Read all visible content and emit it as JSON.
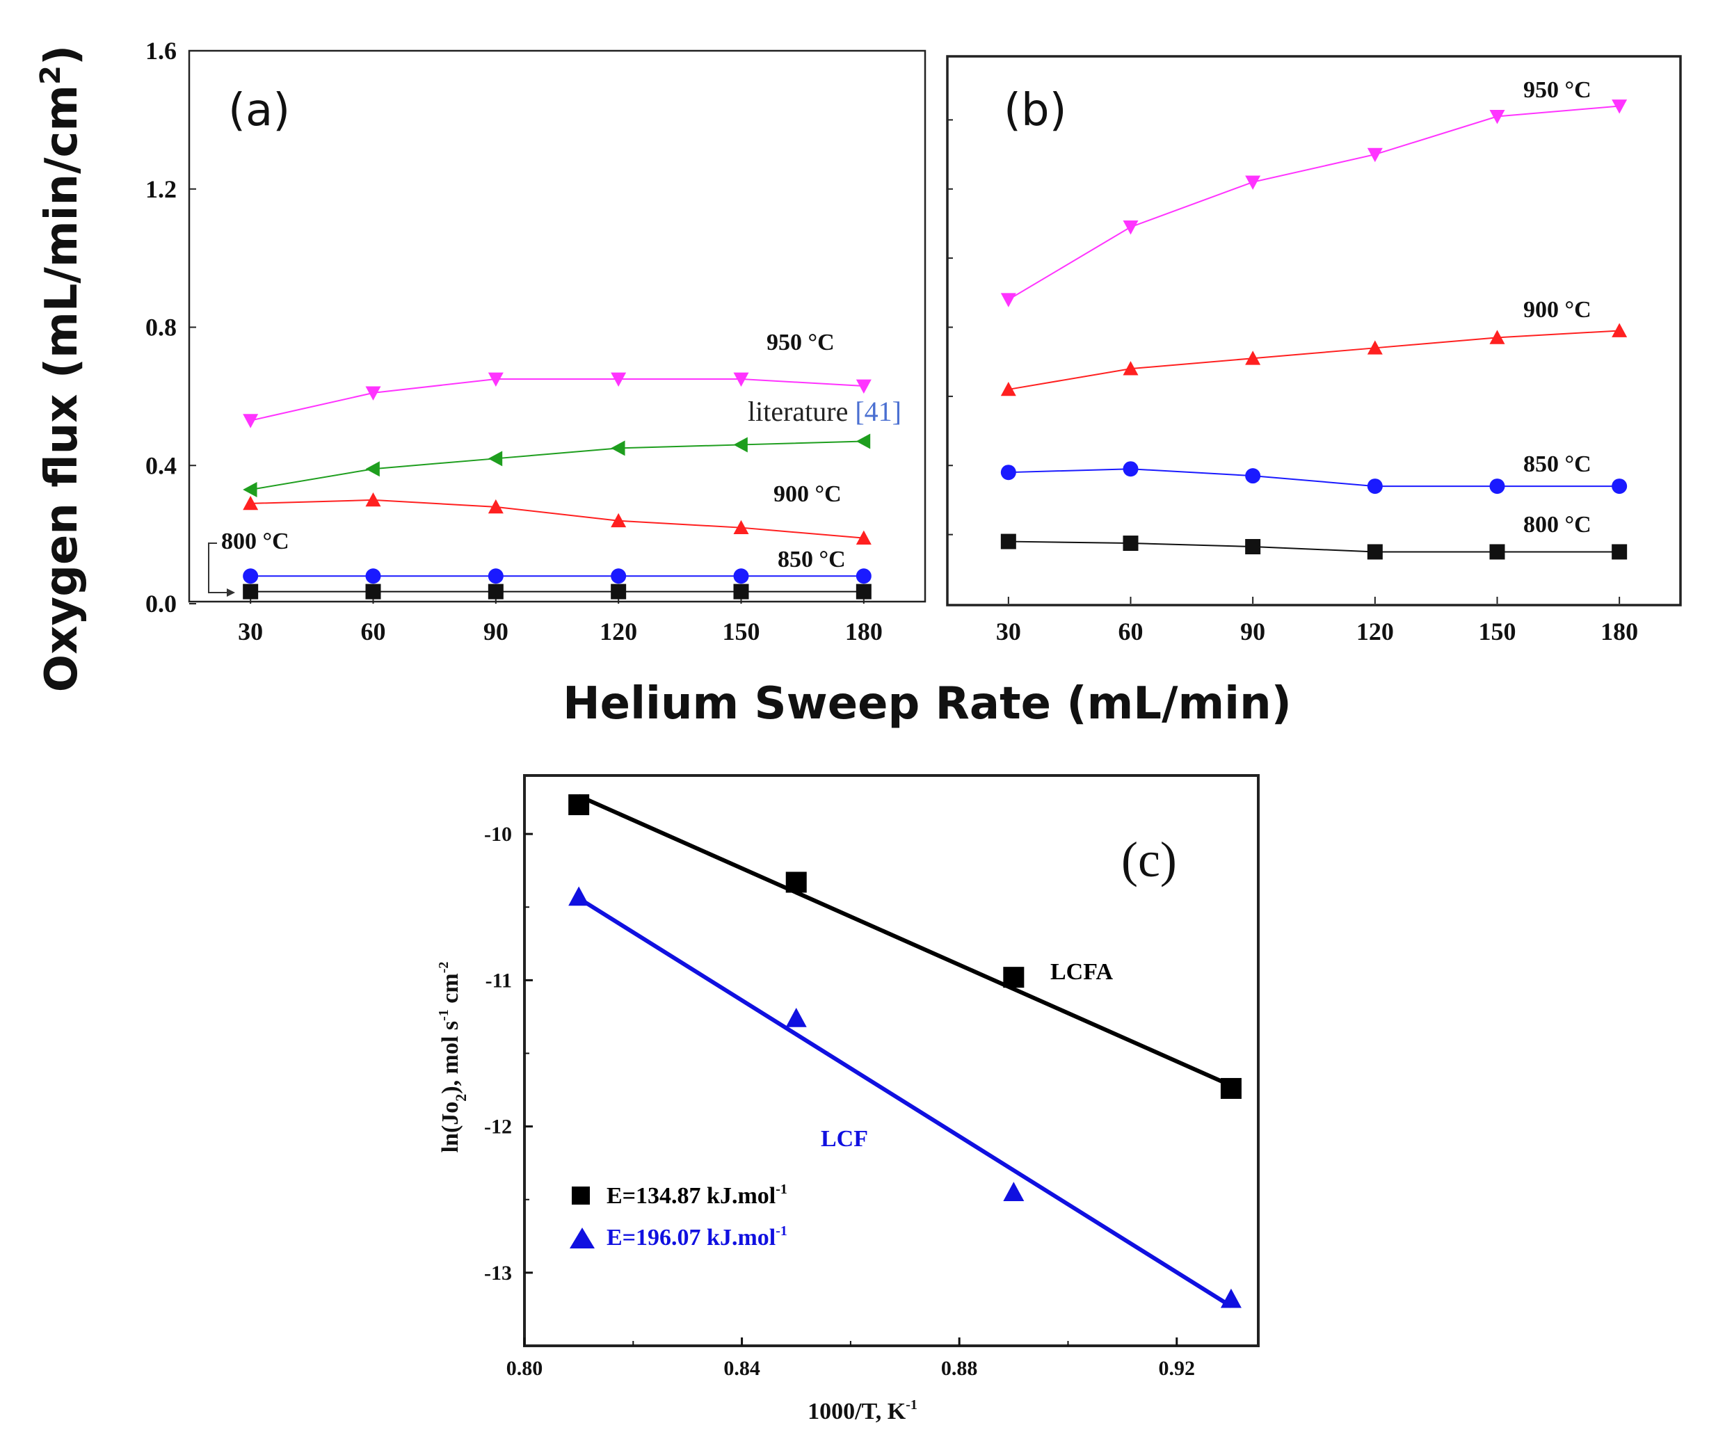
{
  "shared": {
    "ylabel": "Oxygen flux  (mL/min/cm",
    "ylabel_sup": "2",
    "ylabel_close": ")",
    "xlabel": "Helium Sweep Rate (mL/min)"
  },
  "colors": {
    "t950": "#ff33ff",
    "t900": "#ff2020",
    "t850": "#1a1aff",
    "t800": "#111111",
    "literature": "#1e9e1e",
    "ref": "#4a6fd1",
    "lcfa": "#000000",
    "lcf": "#1010e0"
  },
  "chart_data": [
    {
      "panel": "(a)",
      "type": "line",
      "categories": [
        "30",
        "60",
        "90",
        "120",
        "150",
        "180"
      ],
      "x": [
        30,
        60,
        90,
        120,
        150,
        180
      ],
      "xlim": [
        15,
        195
      ],
      "ylim": [
        0.0,
        1.6
      ],
      "yticks": [
        "0.0",
        "0.4",
        "0.8",
        "1.2",
        "1.6"
      ],
      "series": [
        {
          "key": "t950",
          "name": "950 °C",
          "marker": "triangle-down",
          "values": [
            0.53,
            0.61,
            0.65,
            0.65,
            0.65,
            0.63
          ]
        },
        {
          "key": "literature",
          "name": "literature",
          "ref": "[41]",
          "marker": "triangle-left",
          "values": [
            0.33,
            0.39,
            0.42,
            0.45,
            0.46,
            0.47
          ]
        },
        {
          "key": "t900",
          "name": "900 °C",
          "marker": "triangle-up",
          "values": [
            0.29,
            0.3,
            0.28,
            0.24,
            0.22,
            0.19
          ]
        },
        {
          "key": "t850",
          "name": "850 °C",
          "marker": "circle",
          "values": [
            0.08,
            0.08,
            0.08,
            0.08,
            0.08,
            0.08
          ]
        },
        {
          "key": "t800",
          "name": "800 °C",
          "marker": "square",
          "values": [
            0.035,
            0.035,
            0.035,
            0.035,
            0.035,
            0.035
          ]
        }
      ]
    },
    {
      "panel": "(b)",
      "type": "line",
      "categories": [
        "30",
        "60",
        "90",
        "120",
        "150",
        "180"
      ],
      "x": [
        30,
        60,
        90,
        120,
        150,
        180
      ],
      "xlim": [
        15,
        195
      ],
      "ylim": [
        0.0,
        1.6
      ],
      "series": [
        {
          "key": "t950",
          "name": "950 °C",
          "marker": "triangle-down",
          "values": [
            0.88,
            1.09,
            1.22,
            1.3,
            1.41,
            1.44
          ]
        },
        {
          "key": "t900",
          "name": "900 °C",
          "marker": "triangle-up",
          "values": [
            0.62,
            0.68,
            0.71,
            0.74,
            0.77,
            0.79
          ]
        },
        {
          "key": "t850",
          "name": "850 °C",
          "marker": "circle",
          "values": [
            0.38,
            0.39,
            0.37,
            0.34,
            0.34,
            0.34
          ]
        },
        {
          "key": "t800",
          "name": "800 °C",
          "marker": "square",
          "values": [
            0.18,
            0.175,
            0.165,
            0.15,
            0.15,
            0.15
          ]
        }
      ]
    },
    {
      "panel": "(c)",
      "type": "scatter",
      "xlabel": "1000/T, K",
      "xlabel_sup": "-1",
      "ylabel_parts": [
        "ln(Jo",
        "2",
        "), mol  s",
        "-1",
        "  cm",
        "-2"
      ],
      "xlim": [
        0.8,
        0.935
      ],
      "ylim": [
        -13.5,
        -9.6
      ],
      "xticks": [
        "0.80",
        "0.84",
        "0.88",
        "0.92"
      ],
      "yticks": [
        "-10",
        "-11",
        "-12",
        "-13"
      ],
      "series": [
        {
          "key": "lcfa",
          "name": "LCFA",
          "legend": "E=134.87 kJ.mol",
          "legend_sup": "-1",
          "marker": "square",
          "x": [
            0.81,
            0.85,
            0.89,
            0.93
          ],
          "y": [
            -9.8,
            -10.33,
            -10.98,
            -11.74
          ],
          "fit": {
            "x0": 0.81,
            "y0": -9.74,
            "x1": 0.93,
            "y1": -11.72
          }
        },
        {
          "key": "lcf",
          "name": "LCF",
          "legend": "E=196.07 kJ.mol",
          "legend_sup": "-1",
          "marker": "triangle-up",
          "x": [
            0.81,
            0.85,
            0.89,
            0.93
          ],
          "y": [
            -10.43,
            -11.26,
            -12.45,
            -13.18
          ],
          "fit": {
            "x0": 0.81,
            "y0": -10.44,
            "x1": 0.93,
            "y1": -13.23
          }
        }
      ]
    }
  ]
}
